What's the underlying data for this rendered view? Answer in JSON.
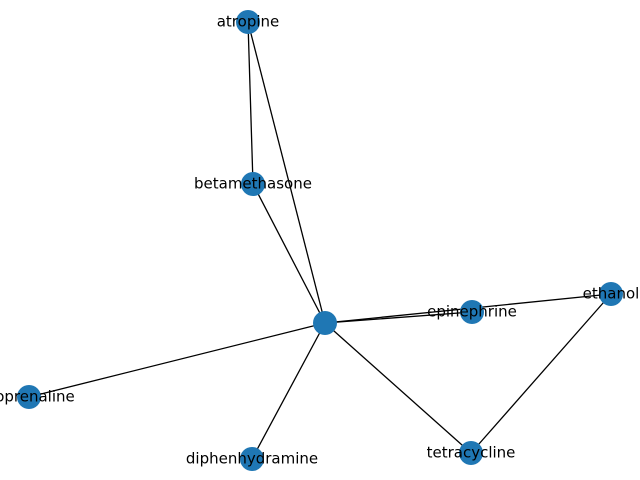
{
  "graph": {
    "node_color": "#1f77b4",
    "edge_color": "#000000",
    "nodes": [
      {
        "id": "center",
        "label": ""
      },
      {
        "id": "atropine",
        "label": "atropine"
      },
      {
        "id": "betamethasone",
        "label": "betamethasone"
      },
      {
        "id": "epinephrine",
        "label": "epinephrine"
      },
      {
        "id": "ethanol",
        "label": "ethanol"
      },
      {
        "id": "isoprenaline",
        "label": "isoprenaline"
      },
      {
        "id": "diphenhydramine",
        "label": "diphenhydramine"
      },
      {
        "id": "tetracycline",
        "label": "tetracycline"
      }
    ],
    "edges": [
      [
        "center",
        "atropine"
      ],
      [
        "center",
        "betamethasone"
      ],
      [
        "center",
        "epinephrine"
      ],
      [
        "center",
        "ethanol"
      ],
      [
        "center",
        "isoprenaline"
      ],
      [
        "center",
        "diphenhydramine"
      ],
      [
        "center",
        "tetracycline"
      ],
      [
        "atropine",
        "betamethasone"
      ],
      [
        "ethanol",
        "tetracycline"
      ]
    ]
  }
}
